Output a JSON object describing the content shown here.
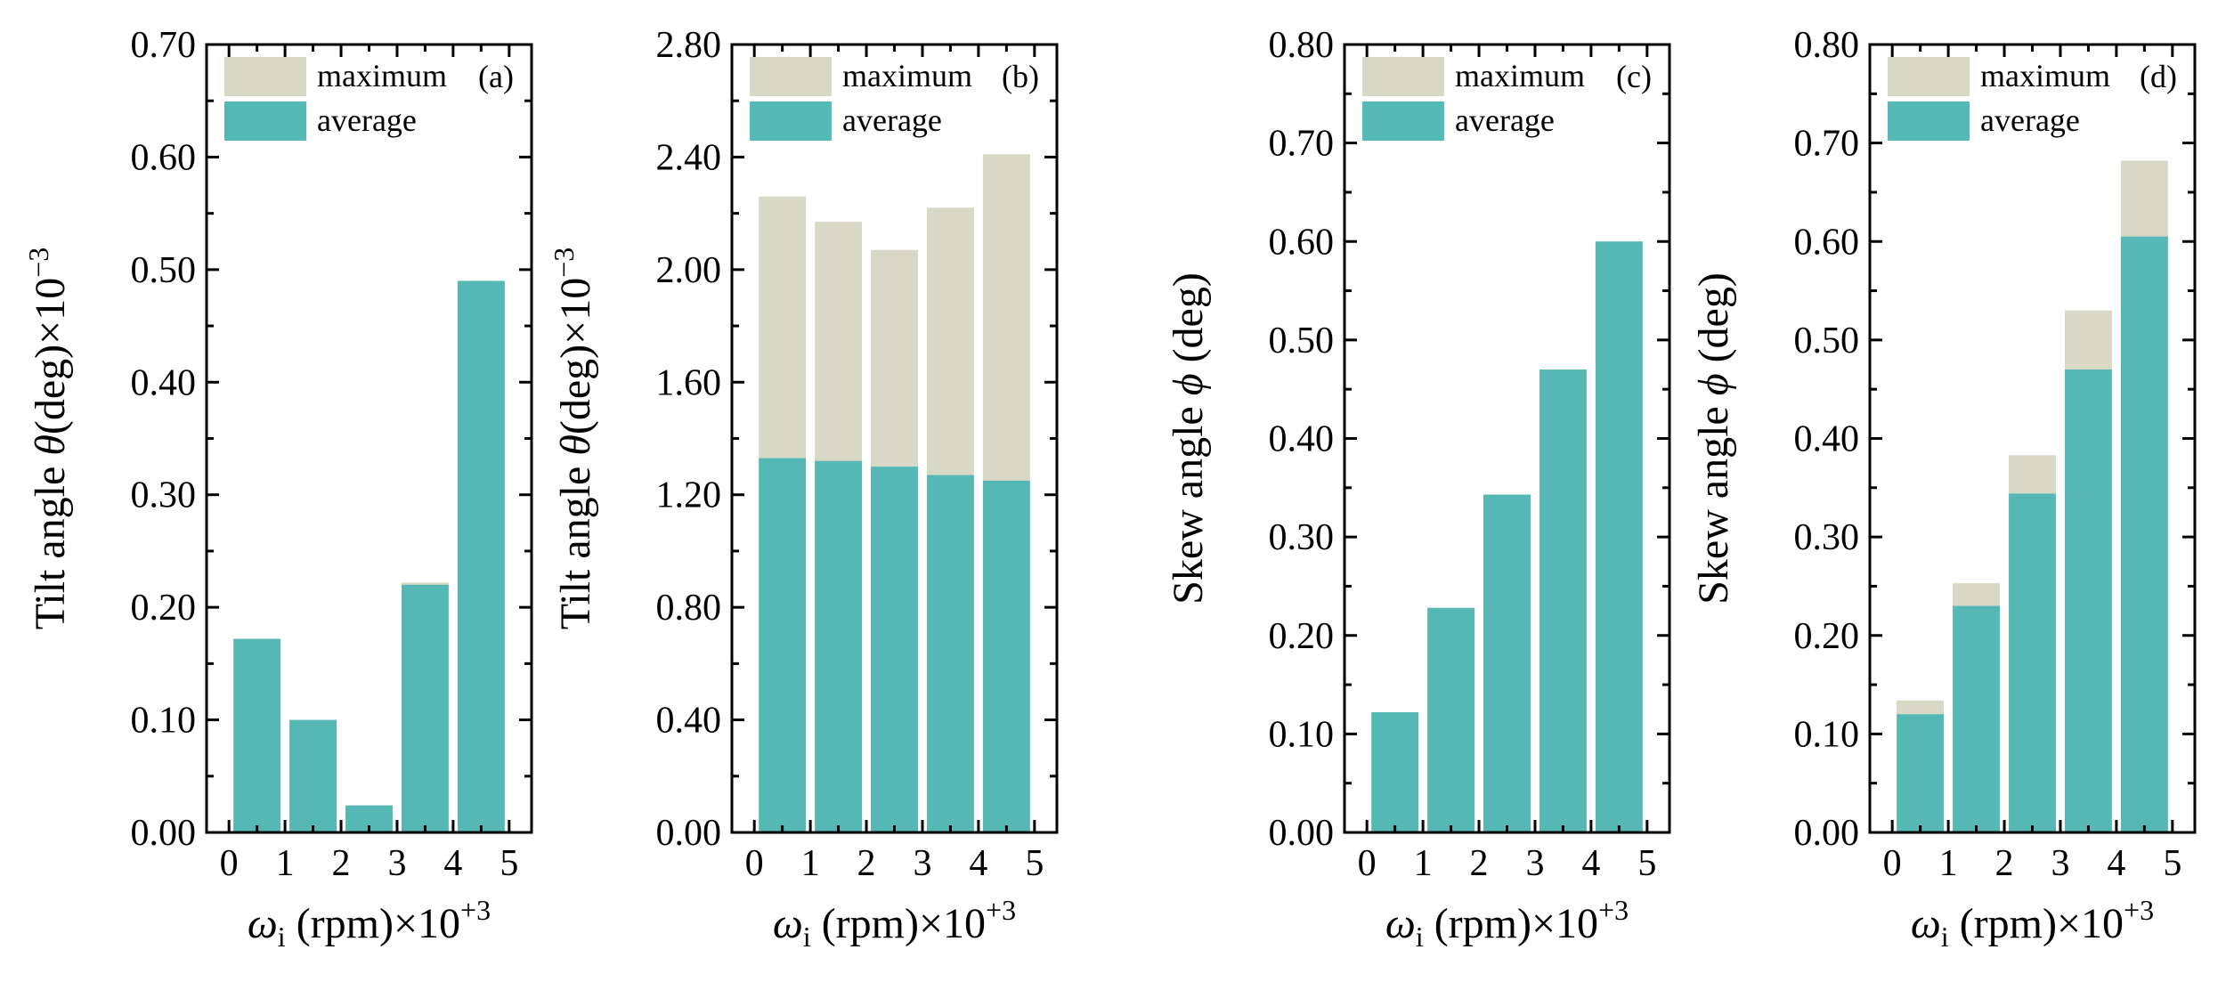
{
  "colors": {
    "maximum": "#d8d8c6",
    "average": "#55b8b4"
  },
  "chart_data": [
    {
      "type": "bar",
      "stacked_overlay": true,
      "panel": "(a)",
      "ylabel": {
        "main": "Tilt angle ",
        "symbol": "θ",
        "rest": "(deg)×10",
        "sup": "−3"
      },
      "xlabel": {
        "symbol": "ω",
        "sub": "i",
        "rest": " (rpm)×10",
        "sup": "+3"
      },
      "ylim": [
        0,
        0.7
      ],
      "yticks": [
        "0.00",
        "0.10",
        "0.20",
        "0.30",
        "0.40",
        "0.50",
        "0.60",
        "0.70"
      ],
      "xlim": [
        -0.4,
        5.4
      ],
      "xticks": [
        "0",
        "1",
        "2",
        "3",
        "4",
        "5"
      ],
      "x": [
        0.5,
        1.5,
        2.5,
        3.5,
        4.5
      ],
      "legend": [
        "maximum",
        "average"
      ],
      "series": [
        {
          "name": "maximum",
          "values": [
            0.172,
            0.1,
            0.024,
            0.222,
            0.49
          ]
        },
        {
          "name": "average",
          "values": [
            0.172,
            0.1,
            0.024,
            0.22,
            0.49
          ]
        }
      ]
    },
    {
      "type": "bar",
      "stacked_overlay": true,
      "panel": "(b)",
      "ylabel": {
        "main": "Tilt angle ",
        "symbol": "θ",
        "rest": "(deg)×10",
        "sup": "−3"
      },
      "xlabel": {
        "symbol": "ω",
        "sub": "i",
        "rest": " (rpm)×10",
        "sup": "+3"
      },
      "ylim": [
        0,
        2.8
      ],
      "yticks": [
        "0.00",
        "0.40",
        "0.80",
        "1.20",
        "1.60",
        "2.00",
        "2.40",
        "2.80"
      ],
      "xlim": [
        -0.4,
        5.4
      ],
      "xticks": [
        "0",
        "1",
        "2",
        "3",
        "4",
        "5"
      ],
      "x": [
        0.5,
        1.5,
        2.5,
        3.5,
        4.5
      ],
      "legend": [
        "maximum",
        "average"
      ],
      "series": [
        {
          "name": "maximum",
          "values": [
            2.26,
            2.17,
            2.07,
            2.22,
            2.41
          ]
        },
        {
          "name": "average",
          "values": [
            1.33,
            1.32,
            1.3,
            1.27,
            1.25
          ]
        }
      ]
    },
    {
      "type": "bar",
      "stacked_overlay": true,
      "panel": "(c)",
      "ylabel": {
        "main": "Skew angle ",
        "symbol": "ϕ",
        "rest": " (deg)",
        "sup": ""
      },
      "xlabel": {
        "symbol": "ω",
        "sub": "i",
        "rest": " (rpm)×10",
        "sup": "+3"
      },
      "ylim": [
        0,
        0.8
      ],
      "yticks": [
        "0.00",
        "0.10",
        "0.20",
        "0.30",
        "0.40",
        "0.50",
        "0.60",
        "0.70",
        "0.80"
      ],
      "xlim": [
        -0.4,
        5.4
      ],
      "xticks": [
        "0",
        "1",
        "2",
        "3",
        "4",
        "5"
      ],
      "x": [
        0.5,
        1.5,
        2.5,
        3.5,
        4.5
      ],
      "legend": [
        "maximum",
        "average"
      ],
      "series": [
        {
          "name": "maximum",
          "values": [
            0.122,
            0.228,
            0.343,
            0.47,
            0.6
          ]
        },
        {
          "name": "average",
          "values": [
            0.122,
            0.228,
            0.343,
            0.47,
            0.6
          ]
        }
      ]
    },
    {
      "type": "bar",
      "stacked_overlay": true,
      "panel": "(d)",
      "ylabel": {
        "main": "Skew angle ",
        "symbol": "ϕ",
        "rest": " (deg)",
        "sup": ""
      },
      "xlabel": {
        "symbol": "ω",
        "sub": "i",
        "rest": " (rpm)×10",
        "sup": "+3"
      },
      "ylim": [
        0,
        0.8
      ],
      "yticks": [
        "0.00",
        "0.10",
        "0.20",
        "0.30",
        "0.40",
        "0.50",
        "0.60",
        "0.70",
        "0.80"
      ],
      "xlim": [
        -0.4,
        5.4
      ],
      "xticks": [
        "0",
        "1",
        "2",
        "3",
        "4",
        "5"
      ],
      "x": [
        0.5,
        1.5,
        2.5,
        3.5,
        4.5
      ],
      "legend": [
        "maximum",
        "average"
      ],
      "series": [
        {
          "name": "maximum",
          "values": [
            0.134,
            0.253,
            0.383,
            0.53,
            0.682
          ]
        },
        {
          "name": "average",
          "values": [
            0.12,
            0.23,
            0.344,
            0.47,
            0.605
          ]
        }
      ]
    }
  ]
}
